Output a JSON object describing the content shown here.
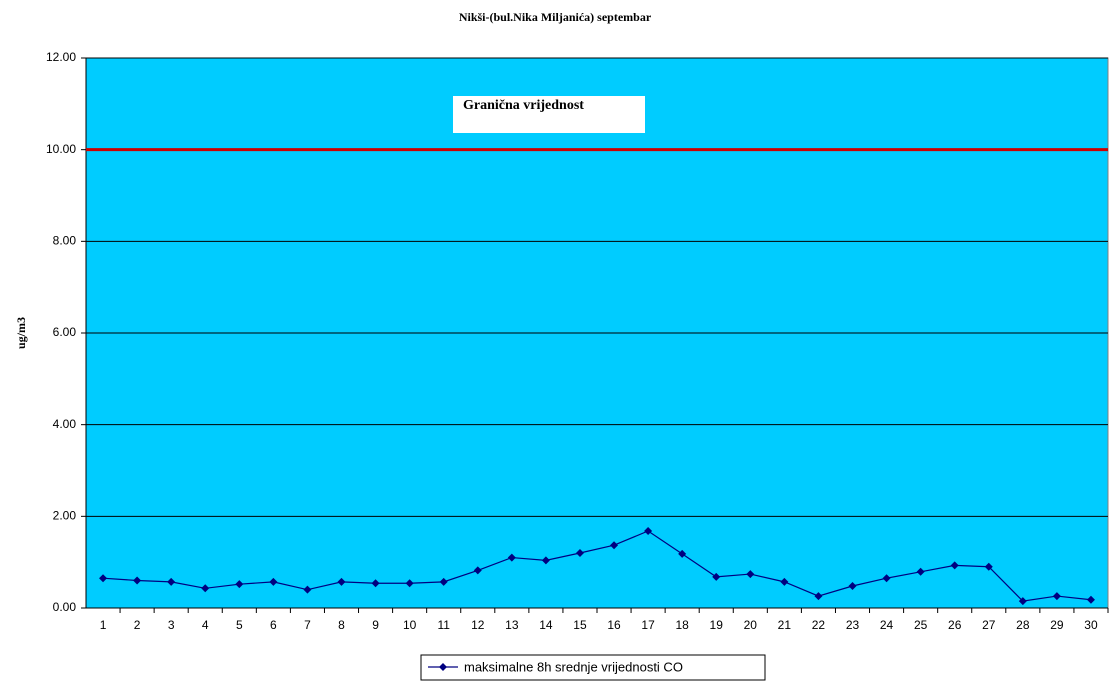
{
  "chart_data": {
    "type": "line",
    "title": "Nikši-(bul.Nika Miljanića) septembar",
    "y_label": "ug/m3",
    "categories": [
      "1",
      "2",
      "3",
      "4",
      "5",
      "6",
      "7",
      "8",
      "9",
      "10",
      "11",
      "12",
      "13",
      "14",
      "15",
      "16",
      "17",
      "18",
      "19",
      "20",
      "21",
      "22",
      "23",
      "24",
      "25",
      "26",
      "27",
      "28",
      "29",
      "30"
    ],
    "series": [
      {
        "name": "maksimalne 8h srednje vrijednosti CO",
        "color": "#000080",
        "values": [
          0.65,
          0.6,
          0.57,
          0.43,
          0.52,
          0.57,
          0.4,
          0.57,
          0.54,
          0.54,
          0.57,
          0.82,
          1.1,
          1.04,
          1.2,
          1.37,
          1.68,
          1.18,
          0.68,
          0.74,
          0.57,
          0.26,
          0.48,
          0.65,
          0.79,
          0.93,
          0.9,
          0.15,
          0.26,
          0.18
        ]
      }
    ],
    "reference_line": {
      "value": 10,
      "color": "#cc0000",
      "label": "Granična vrijednost"
    },
    "ylim": [
      0,
      12
    ],
    "yticks": [
      {
        "value": 0,
        "label": "0.00"
      },
      {
        "value": 2,
        "label": "2.00"
      },
      {
        "value": 4,
        "label": "4.00"
      },
      {
        "value": 6,
        "label": "6.00"
      },
      {
        "value": 8,
        "label": "8.00"
      },
      {
        "value": 10,
        "label": "10.00"
      },
      {
        "value": 12,
        "label": "12.00"
      }
    ],
    "grid": true,
    "plot_background": "#00ccff",
    "legend": "bottom"
  }
}
